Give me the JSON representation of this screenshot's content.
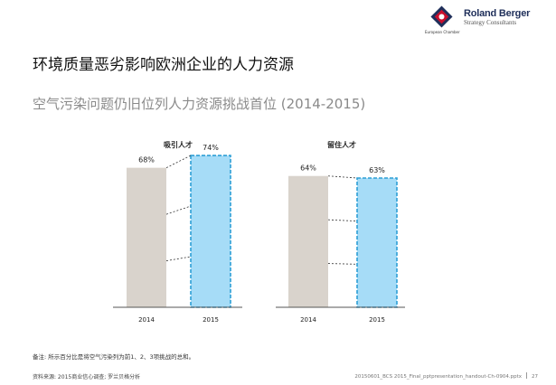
{
  "header": {
    "brand": "Roland Berger",
    "brand_sub": "Strategy Consultants",
    "chamber": "European Chamber"
  },
  "title": "环境质量恶劣影响欧洲企业的人力资源",
  "subtitle": "空气污染问题仍旧位列人力资源挑战首位 (2014-2015)",
  "chart_data": [
    {
      "type": "bar",
      "title": "吸引人才",
      "categories": [
        "2014",
        "2015"
      ],
      "values": [
        68,
        74
      ],
      "value_labels": [
        "68%",
        "74%"
      ],
      "ylim": [
        0,
        100
      ],
      "colors": [
        "#d9d3cc",
        "#a6dcf7"
      ]
    },
    {
      "type": "bar",
      "title": "留住人才",
      "categories": [
        "2014",
        "2015"
      ],
      "values": [
        64,
        63
      ],
      "value_labels": [
        "64%",
        "63%"
      ],
      "ylim": [
        0,
        100
      ],
      "colors": [
        "#d9d3cc",
        "#a6dcf7"
      ]
    }
  ],
  "note": "备注: 所示百分比是将空气污染列为前1、2、3项挑战的总和。",
  "footer": {
    "source": "资料来源: 2015商业信心调查; 罗兰贝格分析",
    "file": "20150601_BCS 2015_Final_pptpresentation_handout-Ch-0904.pptx",
    "page": "27"
  }
}
